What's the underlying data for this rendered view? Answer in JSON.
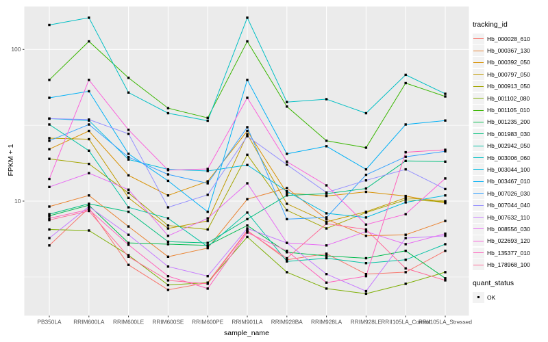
{
  "figure": {
    "background": "#ffffff",
    "panel_background": "#EBEBEB",
    "gridline_color": "#ffffff",
    "tick_label_color": "#4d4d4d",
    "marker_color": "#000000"
  },
  "chart_data": {
    "type": "line",
    "title": "",
    "xlabel": "sample_name",
    "ylabel": "FPKM + 1",
    "y_scale": "log10",
    "y_ticks": [
      10,
      100
    ],
    "y_tick_labels": [
      "10",
      "100"
    ],
    "y_minor_gridlines": [
      3.16,
      31.6
    ],
    "ylim": [
      1.8,
      190
    ],
    "grid": "on",
    "legend": {
      "title": "tracking_id",
      "position": "right"
    },
    "legend2": {
      "title": "quant_status",
      "items": [
        "OK"
      ],
      "marker": "black-square"
    },
    "categories": [
      "PB350LA",
      "RRIM600LA",
      "RRIM600LE",
      "RRIM600SE",
      "RRIM600PE",
      "RRIM901LA",
      "RRIM928BA",
      "RRIM928LA",
      "RRIM928LE",
      "RRII105LA_Control",
      "RRII105LA_Stressed"
    ],
    "series": [
      {
        "name": "Hb_000028_610",
        "color": "#F8766D",
        "values": [
          5.1,
          9.0,
          3.8,
          2.6,
          2.9,
          6.4,
          4.1,
          4.5,
          3.3,
          3.4,
          4.7
        ]
      },
      {
        "name": "Hb_000367_130",
        "color": "#EA8331",
        "values": [
          9.2,
          10.9,
          6.8,
          4.3,
          4.9,
          10.3,
          12.2,
          7.6,
          5.9,
          6.0,
          7.4
        ]
      },
      {
        "name": "Hb_000392_050",
        "color": "#D89000",
        "values": [
          22,
          29,
          14.8,
          10.9,
          13.5,
          29,
          11.3,
          10.8,
          11.5,
          10.8,
          9.7
        ]
      },
      {
        "name": "Hb_000797_050",
        "color": "#C09B00",
        "values": [
          26,
          25.6,
          10.5,
          6.6,
          7.4,
          27.6,
          9.6,
          7.3,
          8.5,
          10.5,
          10.0
        ]
      },
      {
        "name": "Hb_000913_050",
        "color": "#A3A500",
        "values": [
          19,
          17.6,
          11.3,
          6.9,
          6.5,
          20.2,
          8.7,
          6.6,
          8.4,
          10.2,
          9.9
        ]
      },
      {
        "name": "Hb_001102_080",
        "color": "#7CAE00",
        "values": [
          6.5,
          6.4,
          4.4,
          2.8,
          2.9,
          5.8,
          3.4,
          2.65,
          2.45,
          2.85,
          3.4
        ]
      },
      {
        "name": "Hb_001105_010",
        "color": "#39B600",
        "values": [
          63,
          113,
          65,
          41,
          35.4,
          113,
          42,
          25,
          22.5,
          60,
          49
        ]
      },
      {
        "name": "Hb_001235_200",
        "color": "#00BB4E",
        "values": [
          8.0,
          9.4,
          5.3,
          5.2,
          5.1,
          6.9,
          4.6,
          4.35,
          4.2,
          4.7,
          3.1
        ]
      },
      {
        "name": "Hb_001983_030",
        "color": "#00BF7D",
        "values": [
          8.2,
          9.6,
          8.5,
          5.4,
          5.3,
          7.6,
          10.9,
          11.2,
          12.1,
          18.4,
          18.2
        ]
      },
      {
        "name": "Hb_002942_050",
        "color": "#00C1A3",
        "values": [
          32,
          21.5,
          9.1,
          7.7,
          5.0,
          8.4,
          4.0,
          4.2,
          3.9,
          4.1,
          5.2
        ]
      },
      {
        "name": "Hb_003006_060",
        "color": "#00BFC4",
        "values": [
          145,
          162,
          52,
          38,
          33.9,
          162,
          45,
          47,
          38,
          68,
          51
        ]
      },
      {
        "name": "Hb_003044_100",
        "color": "#00BAE0",
        "values": [
          35,
          34,
          18.8,
          16.2,
          15.8,
          17.3,
          11.6,
          8.3,
          7.8,
          9.8,
          10.9
        ]
      },
      {
        "name": "Hb_003467_010",
        "color": "#00B0F6",
        "values": [
          48,
          53,
          20.5,
          13.6,
          8.5,
          63,
          20.5,
          23,
          16.2,
          32,
          34
        ]
      },
      {
        "name": "Hb_007026_030",
        "color": "#35A2FF",
        "values": [
          25,
          32,
          19.5,
          15.0,
          13.1,
          30.7,
          7.6,
          7.8,
          14.9,
          19.6,
          21.3
        ]
      },
      {
        "name": "Hb_007044_040",
        "color": "#9590FF",
        "values": [
          35,
          34.5,
          27.8,
          9.1,
          11.0,
          26.8,
          17.4,
          11.4,
          13.7,
          16.2,
          12.0
        ]
      },
      {
        "name": "Hb_007632_110",
        "color": "#C77CFF",
        "values": [
          5.7,
          9.2,
          6.0,
          3.7,
          3.2,
          6.6,
          5.3,
          3.3,
          2.55,
          5.7,
          5.9
        ]
      },
      {
        "name": "Hb_008556_030",
        "color": "#E76BF3",
        "values": [
          12.4,
          15.3,
          11.9,
          5.9,
          7.7,
          13.1,
          5.3,
          5.1,
          6.3,
          5.2,
          6.1
        ]
      },
      {
        "name": "Hb_022693_120",
        "color": "#FA62DB",
        "values": [
          14,
          63,
          29.5,
          16.0,
          16.3,
          48,
          18.2,
          12.7,
          7.0,
          8.2,
          14.1
        ]
      },
      {
        "name": "Hb_135377_010",
        "color": "#FF62BC",
        "values": [
          7.7,
          8.8,
          5.15,
          3.2,
          2.65,
          6.2,
          4.7,
          2.9,
          3.2,
          21,
          21.8
        ]
      },
      {
        "name": "Hb_178968_100",
        "color": "#FF6A98",
        "values": [
          7.5,
          8.6,
          4.3,
          3.0,
          2.85,
          6.35,
          4.2,
          7.1,
          6.5,
          3.6,
          3.0
        ]
      }
    ]
  }
}
